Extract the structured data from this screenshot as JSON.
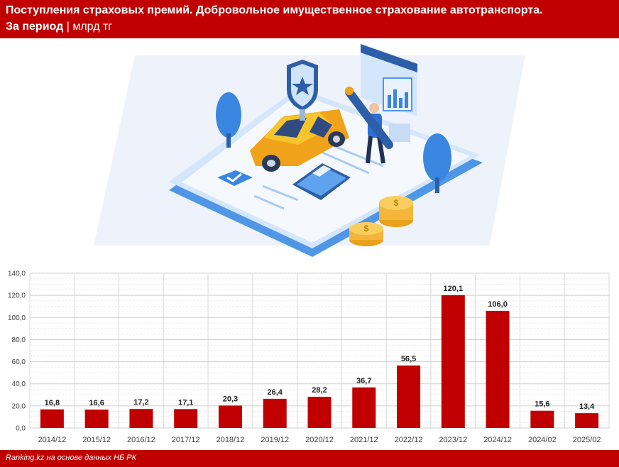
{
  "header": {
    "title": "Поступления страховых премий. Добровольное имущественное страхование автотранспорта.",
    "period_label": "За период",
    "separator": "|",
    "unit": "млрд тг"
  },
  "footer": {
    "source": "Ranking.kz на основе данных НБ РК"
  },
  "colors": {
    "brand": "#c00000",
    "bar": "#c00000",
    "grid": "#d9d9d9"
  },
  "illustration": {
    "icons": [
      "tablet-icon",
      "car-icon",
      "shield-star-icon",
      "person-icon",
      "pen-icon",
      "calculator-icon",
      "coins-icon",
      "tree-icon",
      "browser-window-icon",
      "checkmark-icon"
    ]
  },
  "chart_data": {
    "type": "bar",
    "categories": [
      "2014/12",
      "2015/12",
      "2016/12",
      "2017/12",
      "2018/12",
      "2019/12",
      "2020/12",
      "2021/12",
      "2022/12",
      "2023/12",
      "2024/12",
      "2024/02",
      "2025/02"
    ],
    "values": [
      16.8,
      16.6,
      17.2,
      17.1,
      20.3,
      26.4,
      28.2,
      36.7,
      56.5,
      120.1,
      106.0,
      15.6,
      13.4
    ],
    "value_labels": [
      "16,8",
      "16,6",
      "17,2",
      "17,1",
      "20,3",
      "26,4",
      "28,2",
      "36,7",
      "56,5",
      "120,1",
      "106,0",
      "15,6",
      "13,4"
    ],
    "yticks": [
      "0,0",
      "20,0",
      "40,0",
      "60,0",
      "80,0",
      "100,0",
      "120,0",
      "140,0"
    ],
    "ylim": [
      0,
      140
    ],
    "grid": true,
    "legend": "none"
  }
}
